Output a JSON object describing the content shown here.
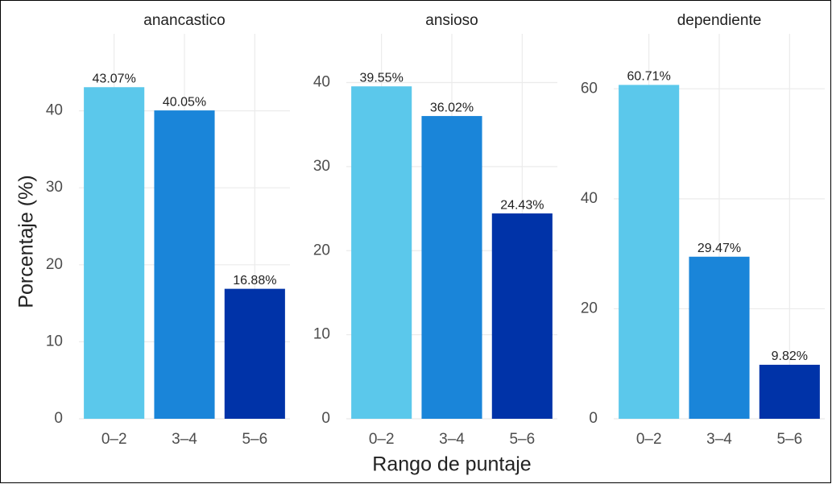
{
  "y_label": "Porcentaje (%)",
  "x_label": "Rango de puntaje",
  "chart_data": [
    {
      "type": "bar",
      "title": "anancastico",
      "categories": [
        "0–2",
        "3–4",
        "5–6"
      ],
      "values": [
        43.07,
        40.05,
        16.88
      ],
      "value_labels": [
        "43.07%",
        "40.05%",
        "16.88%"
      ],
      "colors": [
        "#5bc8eb",
        "#1a85d9",
        "#0033a8"
      ],
      "ylim": [
        0,
        50
      ],
      "yticks": [
        0,
        10,
        20,
        30,
        40
      ],
      "grid": true
    },
    {
      "type": "bar",
      "title": "ansioso",
      "categories": [
        "0–2",
        "3–4",
        "5–6"
      ],
      "values": [
        39.55,
        36.02,
        24.43
      ],
      "value_labels": [
        "39.55%",
        "36.02%",
        "24.43%"
      ],
      "colors": [
        "#5bc8eb",
        "#1a85d9",
        "#0033a8"
      ],
      "ylim": [
        0,
        45.8
      ],
      "yticks": [
        0,
        10,
        20,
        30,
        40
      ],
      "grid": true
    },
    {
      "type": "bar",
      "title": "dependiente",
      "categories": [
        "0–2",
        "3–4",
        "5–6"
      ],
      "values": [
        60.71,
        29.47,
        9.82
      ],
      "value_labels": [
        "60.71%",
        "29.47%",
        "9.82%"
      ],
      "colors": [
        "#5bc8eb",
        "#1a85d9",
        "#0033a8"
      ],
      "ylim": [
        0,
        70
      ],
      "yticks": [
        0,
        20,
        40,
        60
      ],
      "grid": true
    }
  ]
}
